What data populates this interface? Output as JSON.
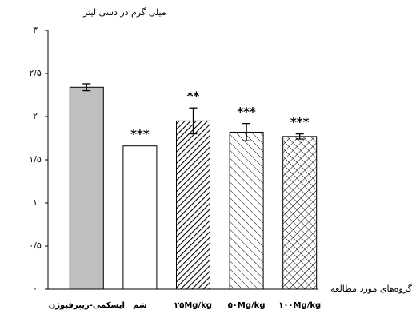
{
  "chart_data": {
    "type": "bar",
    "y_label": "میلی گرم در دسی لیتر",
    "x_label": "گروه‌های مورد مطالعه",
    "categories": [
      "ایسکمی-ریپرفیوژن",
      "شم",
      "۲۵Mg/kg",
      "۵۰Mg/kg",
      "۱۰۰Mg/kg"
    ],
    "values": [
      2.34,
      1.66,
      1.95,
      1.82,
      1.77
    ],
    "errors": [
      0.04,
      0,
      0.15,
      0.1,
      0.03
    ],
    "significance": [
      null,
      "***",
      "**",
      "***",
      "***"
    ],
    "fills": [
      "solid",
      "none",
      "forward-dense",
      "backward",
      "cross"
    ],
    "color": "#bfbfbf",
    "ylim": [
      0,
      3
    ],
    "yticks": [
      {
        "value": 0,
        "label": "۰"
      },
      {
        "value": 0.5,
        "label": "۰/۵"
      },
      {
        "value": 1,
        "label": "۱"
      },
      {
        "value": 1.5,
        "label": "۱/۵"
      },
      {
        "value": 2,
        "label": "۲"
      },
      {
        "value": 2.5,
        "label": "۲/۵"
      },
      {
        "value": 3,
        "label": "۳"
      }
    ]
  }
}
